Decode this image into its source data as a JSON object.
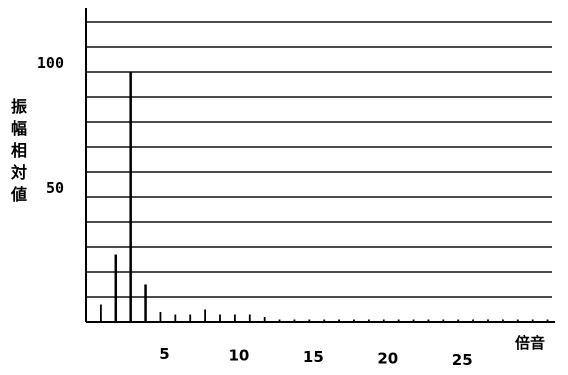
{
  "chart_data": {
    "type": "bar",
    "xlabel": "倍音",
    "ylabel": "振幅相対値",
    "ylim": [
      0,
      120
    ],
    "xlim": [
      0,
      31.5
    ],
    "grid": true,
    "x_ticks": [
      "5",
      "10",
      "15",
      "20",
      "25"
    ],
    "y_ticks": [
      "50",
      "100"
    ],
    "harmonics": [
      1,
      2,
      3,
      4,
      5,
      6,
      7,
      8,
      9,
      10,
      11,
      12,
      13,
      14,
      15,
      16,
      17,
      18,
      19,
      20,
      21,
      22,
      23,
      24,
      25,
      26,
      27,
      28,
      29,
      30,
      31
    ],
    "values": [
      7,
      27,
      100,
      15,
      4,
      3,
      3,
      5,
      3,
      3,
      3,
      2,
      1,
      1,
      1,
      1,
      1,
      1,
      1,
      1,
      1,
      1,
      1,
      1,
      1,
      1,
      1,
      1,
      1,
      1,
      1
    ]
  }
}
